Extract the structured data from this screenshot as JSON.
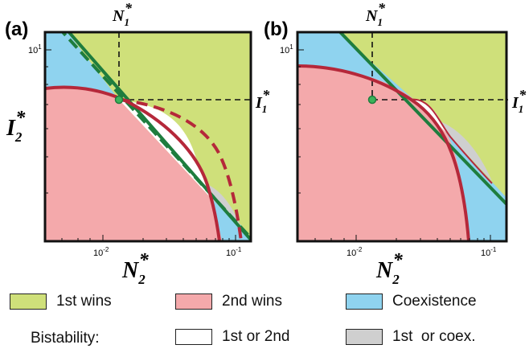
{
  "chart_data": [
    {
      "panel": "(a)",
      "type": "area",
      "x_label": "N_2*",
      "y_label": "I_2*",
      "x_scale": "log",
      "y_scale": "log",
      "x_ticks": [
        "10-2",
        "10-1"
      ],
      "y_ticks": [
        "101"
      ],
      "reference_point": {
        "x_label": "N_1*",
        "y_label": "I_1*"
      },
      "regions": [
        "1st wins",
        "2nd wins",
        "Coexistence",
        "1st or 2nd",
        "1st or coex."
      ],
      "curves": [
        "green solid",
        "green dashed",
        "red solid",
        "red dashed"
      ]
    },
    {
      "panel": "(b)",
      "type": "area",
      "x_label": "N_2*",
      "y_label": "I_2*",
      "x_scale": "log",
      "y_scale": "log",
      "x_ticks": [
        "10-2",
        "10-1"
      ],
      "y_ticks": [
        "101"
      ],
      "reference_point": {
        "x_label": "N_1*",
        "y_label": "I_1*"
      },
      "regions": [
        "1st wins",
        "2nd wins",
        "Coexistence",
        "1st or 2nd",
        "1st or coex."
      ],
      "curves": [
        "green solid",
        "red solid",
        "red thin"
      ]
    }
  ],
  "panels": {
    "a": {
      "letter": "(a)",
      "n1": "N",
      "n1_sub": "1",
      "i1": "I",
      "i1_sub": "1",
      "n2": "N",
      "n2_sub": "2",
      "i2": "I",
      "i2_sub": "2",
      "star": "*",
      "xt1_base": "10",
      "xt1_exp": "-2",
      "xt2_base": "10",
      "xt2_exp": "-1",
      "yt_base": "10",
      "yt_exp": "1"
    },
    "b": {
      "letter": "(b)",
      "n1": "N",
      "n1_sub": "1",
      "i1": "I",
      "i1_sub": "1",
      "n2": "N",
      "n2_sub": "2",
      "xt1_base": "10",
      "xt1_exp": "-2",
      "xt2_base": "10",
      "xt2_exp": "-1",
      "yt_base": "10",
      "yt_exp": "1",
      "star": "*"
    }
  },
  "legend": {
    "first_wins": "1st wins",
    "second_wins": "2nd wins",
    "coexistence": "Coexistence",
    "bistability": "Bistability:",
    "first_or_second": "1st or 2nd",
    "first_or_coex": "1st  or coex."
  },
  "colors": {
    "first_wins": "#cfe07a",
    "second_wins": "#f4a9ab",
    "coexistence": "#8fd3ef",
    "bistable_12": "#ffffff",
    "bistable_coex": "#cfcfcf",
    "green_line": "#1e7d3e",
    "red_line": "#b5283a",
    "point": "#3cb35a"
  }
}
